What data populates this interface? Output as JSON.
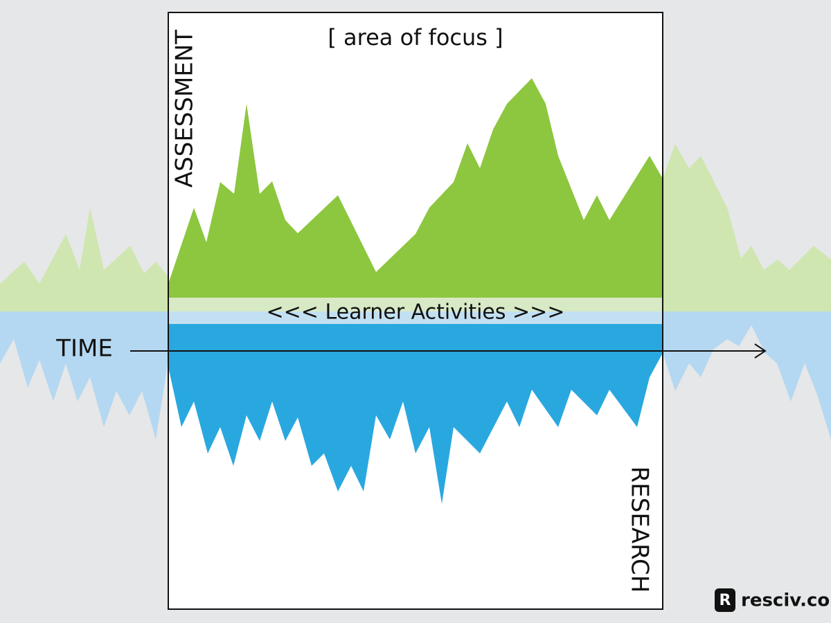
{
  "header": {
    "title": "[ area of focus ]"
  },
  "labels": {
    "top": "ASSESSMENT",
    "bottom": "RESEARCH",
    "band": "<<< Learner Activities >>>",
    "axis": "TIME"
  },
  "footer": {
    "brand": "resciv.co"
  }
}
